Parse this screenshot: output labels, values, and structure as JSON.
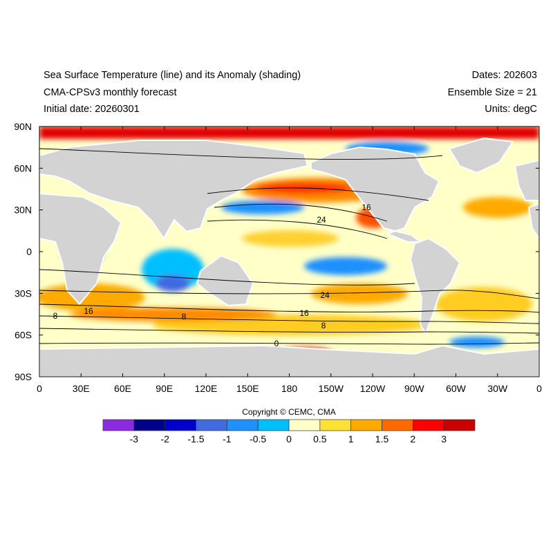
{
  "header": {
    "title": "Sea Surface Temperature (line) and its Anomaly (shading)",
    "subtitle": "CMA-CPSv3 monthly forecast",
    "initial_date": "Initial date: 20260301",
    "dates": "Dates: 202603",
    "ensemble": "Ensemble Size = 21",
    "units": "Units: degC"
  },
  "axes": {
    "x_ticks": [
      "0",
      "30E",
      "60E",
      "90E",
      "120E",
      "150E",
      "180",
      "150W",
      "120W",
      "90W",
      "60W",
      "30W",
      "0"
    ],
    "y_ticks": [
      "90N",
      "60N",
      "30N",
      "0",
      "30S",
      "60S",
      "90S"
    ]
  },
  "contour_labels": [
    "16",
    "24",
    "24",
    "16",
    "8",
    "0",
    "16",
    "8",
    "8"
  ],
  "copyright": "Copyright © CEMC, CMA",
  "colorbar": {
    "colors": [
      "#8a2be2",
      "#00008b",
      "#0000cd",
      "#4169e1",
      "#1e90ff",
      "#00bfff",
      "#ffffc8",
      "#ffe135",
      "#ffaa00",
      "#ff6a00",
      "#ff0000",
      "#c80000"
    ],
    "labels": [
      "-3",
      "-2",
      "-1.5",
      "-1",
      "-0.5",
      "0",
      "0.5",
      "1",
      "1.5",
      "2",
      "3"
    ]
  }
}
